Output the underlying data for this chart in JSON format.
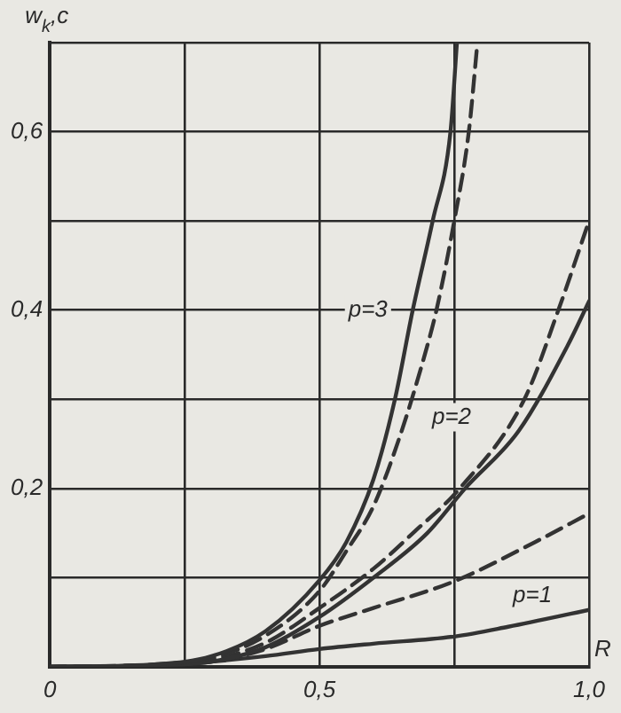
{
  "chart_data": {
    "type": "line",
    "xlabel": "R",
    "ylabel": "w$_{k}$,c",
    "xlim": [
      0,
      1.0
    ],
    "ylim": [
      0,
      0.7
    ],
    "xticks": [
      0,
      {
        "value": 0.25,
        "label": null
      },
      {
        "value": 0.5,
        "label": "0,5"
      },
      {
        "value": 0.75,
        "label": null
      },
      {
        "value": 1.0,
        "label": "1,0"
      }
    ],
    "yticks": [
      {
        "value": 0,
        "label": null
      },
      {
        "value": 0.1,
        "label": null
      },
      {
        "value": 0.2,
        "label": "0,2"
      },
      {
        "value": 0.3,
        "label": null
      },
      {
        "value": 0.4,
        "label": "0,4"
      },
      {
        "value": 0.5,
        "label": null
      },
      {
        "value": 0.6,
        "label": "0,6"
      },
      {
        "value": 0.7,
        "label": null
      }
    ],
    "grid": true,
    "legend": false,
    "marker": "none",
    "series": [
      {
        "color": "#333333",
        "line_style": "solid",
        "x": [
          0,
          0.2,
          0.3,
          0.4,
          0.5,
          0.55,
          0.6,
          0.64,
          0.673,
          0.71,
          0.743,
          0.755
        ],
        "values": [
          0,
          0.003,
          0.012,
          0.04,
          0.097,
          0.14,
          0.21,
          0.3,
          0.4,
          0.5,
          0.6,
          0.7
        ]
      },
      {
        "color": "#333333",
        "line_style": "dashed",
        "x": [
          0,
          0.2,
          0.3,
          0.4,
          0.5,
          0.55,
          0.6,
          0.65,
          0.7,
          0.717,
          0.75,
          0.777,
          0.793
        ],
        "values": [
          0,
          0.003,
          0.01,
          0.035,
          0.085,
          0.13,
          0.18,
          0.26,
          0.36,
          0.4,
          0.5,
          0.6,
          0.7
        ]
      },
      {
        "color": "#333333",
        "line_style": "solid",
        "x": [
          0,
          0.2,
          0.3,
          0.4,
          0.5,
          0.6,
          0.7,
          0.77,
          0.87,
          0.96,
          1.0
        ],
        "values": [
          0,
          0.002,
          0.006,
          0.022,
          0.056,
          0.1,
          0.15,
          0.2,
          0.265,
          0.36,
          0.41
        ]
      },
      {
        "color": "#333333",
        "line_style": "dashed",
        "x": [
          0,
          0.2,
          0.3,
          0.4,
          0.5,
          0.6,
          0.677,
          0.76,
          0.88,
          0.943,
          1.0
        ],
        "values": [
          0,
          0.002,
          0.008,
          0.027,
          0.066,
          0.11,
          0.152,
          0.2,
          0.3,
          0.4,
          0.5
        ]
      },
      {
        "color": "#333333",
        "line_style": "dashed",
        "x": [
          0,
          0.2,
          0.3,
          0.4,
          0.5,
          0.6,
          0.75,
          0.9,
          1.0
        ],
        "values": [
          0,
          0.002,
          0.006,
          0.02,
          0.046,
          0.066,
          0.096,
          0.14,
          0.172
        ]
      },
      {
        "color": "#333333",
        "line_style": "solid",
        "x": [
          0,
          0.2,
          0.3,
          0.4,
          0.5,
          0.6,
          0.75,
          0.85,
          1.0
        ],
        "values": [
          0,
          0.002,
          0.006,
          0.012,
          0.02,
          0.026,
          0.034,
          0.045,
          0.064
        ]
      }
    ],
    "annotations": [
      {
        "text": "p=3",
        "x": 0.59,
        "y": 0.4
      },
      {
        "text": "p=2",
        "x": 0.745,
        "y": 0.28
      },
      {
        "text": "p=1",
        "x": 0.895,
        "y": 0.08
      }
    ]
  }
}
